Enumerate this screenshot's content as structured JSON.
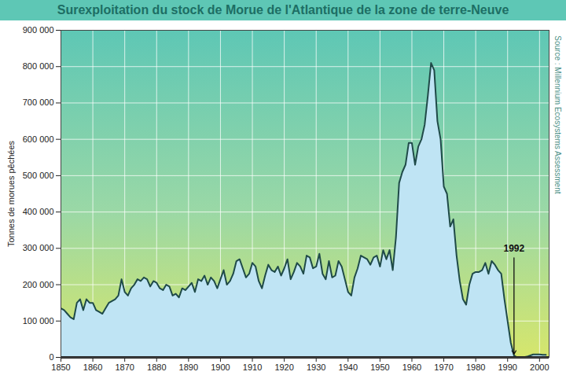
{
  "chart_data": {
    "type": "area",
    "title": "Surexploitation du stock de Morue de l'Atlantique de la zone de terre-Neuve",
    "y_label": "Tonnes de morues pêchées",
    "source": "Source : Millennium Ecosystems Assessment",
    "annotations": [
      {
        "text": "1992",
        "x": 1992,
        "y": 300000
      }
    ],
    "color": "#bfe4f4",
    "grid": true,
    "xlim": [
      1850,
      2003
    ],
    "xticks": [
      1850,
      1860,
      1870,
      1880,
      1890,
      1900,
      1910,
      1920,
      1930,
      1940,
      1950,
      1960,
      1970,
      1980,
      1990,
      2000
    ],
    "ylim": [
      0,
      900000
    ],
    "yticks": [
      0,
      {
        "value": 100000,
        "label": "100 000"
      },
      {
        "value": 200000,
        "label": "200 000"
      },
      {
        "value": 300000,
        "label": "300 000"
      },
      {
        "value": 400000,
        "label": "400 000"
      },
      {
        "value": 500000,
        "label": "500 000"
      },
      {
        "value": 600000,
        "label": "600 000"
      },
      {
        "value": 700000,
        "label": "700 000"
      },
      {
        "value": 800000,
        "label": "800 000"
      },
      {
        "value": 900000,
        "label": "900 000"
      }
    ],
    "x": [
      1850,
      1851,
      1852,
      1853,
      1854,
      1855,
      1856,
      1857,
      1858,
      1859,
      1860,
      1861,
      1862,
      1863,
      1864,
      1865,
      1866,
      1867,
      1868,
      1869,
      1870,
      1871,
      1872,
      1873,
      1874,
      1875,
      1876,
      1877,
      1878,
      1879,
      1880,
      1881,
      1882,
      1883,
      1884,
      1885,
      1886,
      1887,
      1888,
      1889,
      1890,
      1891,
      1892,
      1893,
      1894,
      1895,
      1896,
      1897,
      1898,
      1899,
      1900,
      1901,
      1902,
      1903,
      1904,
      1905,
      1906,
      1907,
      1908,
      1909,
      1910,
      1911,
      1912,
      1913,
      1914,
      1915,
      1916,
      1917,
      1918,
      1919,
      1920,
      1921,
      1922,
      1923,
      1924,
      1925,
      1926,
      1927,
      1928,
      1929,
      1930,
      1931,
      1932,
      1933,
      1934,
      1935,
      1936,
      1937,
      1938,
      1939,
      1940,
      1941,
      1942,
      1943,
      1944,
      1945,
      1946,
      1947,
      1948,
      1949,
      1950,
      1951,
      1952,
      1953,
      1954,
      1955,
      1956,
      1957,
      1958,
      1959,
      1960,
      1961,
      1962,
      1963,
      1964,
      1965,
      1966,
      1967,
      1968,
      1969,
      1970,
      1971,
      1972,
      1973,
      1974,
      1975,
      1976,
      1977,
      1978,
      1979,
      1980,
      1981,
      1982,
      1983,
      1984,
      1985,
      1986,
      1987,
      1988,
      1989,
      1990,
      1991,
      1992,
      1993,
      1994,
      1995,
      1996,
      1997,
      1998,
      1999,
      2000,
      2001,
      2002
    ],
    "values": [
      135000,
      130000,
      120000,
      110000,
      105000,
      150000,
      160000,
      130000,
      160000,
      150000,
      150000,
      130000,
      125000,
      120000,
      135000,
      150000,
      155000,
      160000,
      170000,
      215000,
      180000,
      170000,
      190000,
      200000,
      215000,
      210000,
      220000,
      215000,
      195000,
      210000,
      205000,
      190000,
      185000,
      200000,
      195000,
      170000,
      175000,
      165000,
      190000,
      185000,
      195000,
      205000,
      180000,
      215000,
      210000,
      225000,
      200000,
      220000,
      210000,
      190000,
      215000,
      240000,
      200000,
      210000,
      230000,
      265000,
      270000,
      245000,
      220000,
      230000,
      260000,
      250000,
      210000,
      190000,
      225000,
      255000,
      240000,
      235000,
      250000,
      225000,
      245000,
      270000,
      215000,
      235000,
      260000,
      250000,
      230000,
      280000,
      275000,
      245000,
      250000,
      285000,
      230000,
      215000,
      265000,
      220000,
      225000,
      265000,
      250000,
      215000,
      180000,
      170000,
      220000,
      245000,
      280000,
      275000,
      270000,
      255000,
      275000,
      280000,
      250000,
      295000,
      270000,
      295000,
      240000,
      330000,
      480000,
      510000,
      530000,
      590000,
      590000,
      530000,
      580000,
      600000,
      640000,
      720000,
      810000,
      790000,
      650000,
      600000,
      470000,
      450000,
      360000,
      380000,
      280000,
      210000,
      160000,
      145000,
      200000,
      230000,
      235000,
      235000,
      240000,
      260000,
      230000,
      265000,
      255000,
      240000,
      230000,
      160000,
      100000,
      40000,
      5000,
      0,
      0,
      0,
      2000,
      5000,
      8000,
      8000,
      8000,
      7000,
      7000
    ]
  }
}
